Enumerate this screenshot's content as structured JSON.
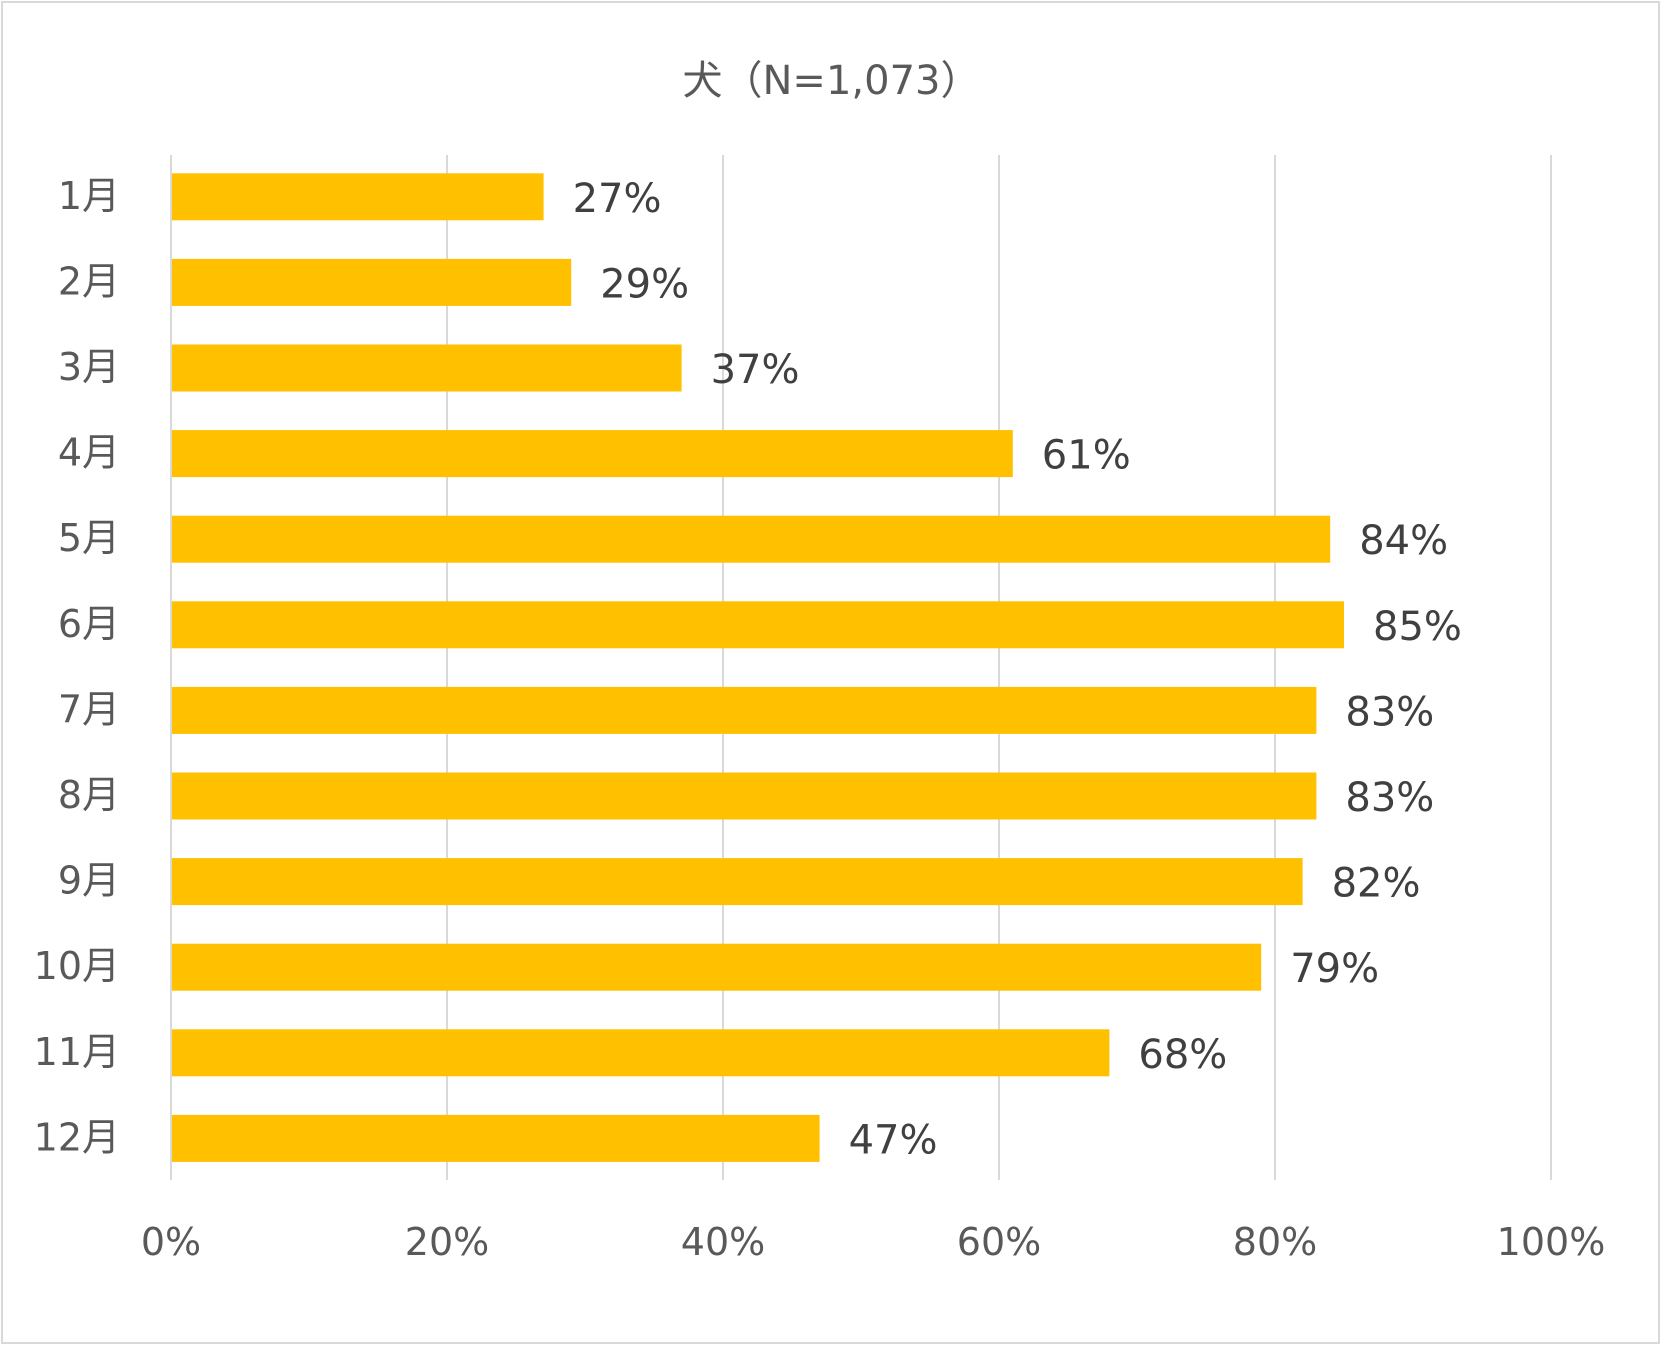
{
  "chart_data": {
    "type": "bar",
    "orientation": "horizontal",
    "title": "犬（N=1,073）",
    "categories": [
      "1月",
      "2月",
      "3月",
      "4月",
      "5月",
      "6月",
      "7月",
      "8月",
      "9月",
      "10月",
      "11月",
      "12月"
    ],
    "values": [
      27,
      29,
      37,
      61,
      84,
      85,
      83,
      83,
      82,
      79,
      68,
      47
    ],
    "data_labels": [
      "27%",
      "29%",
      "37%",
      "61%",
      "84%",
      "85%",
      "83%",
      "83%",
      "82%",
      "79%",
      "68%",
      "47%"
    ],
    "xlim": [
      0,
      100
    ],
    "x_ticks": [
      0,
      20,
      40,
      60,
      80,
      100
    ],
    "x_tick_labels": [
      "0%",
      "20%",
      "40%",
      "60%",
      "80%",
      "100%"
    ],
    "grid": "vertical",
    "legend": "none",
    "bar_color": "#FFC000",
    "grid_color": "#d9d9d9"
  }
}
